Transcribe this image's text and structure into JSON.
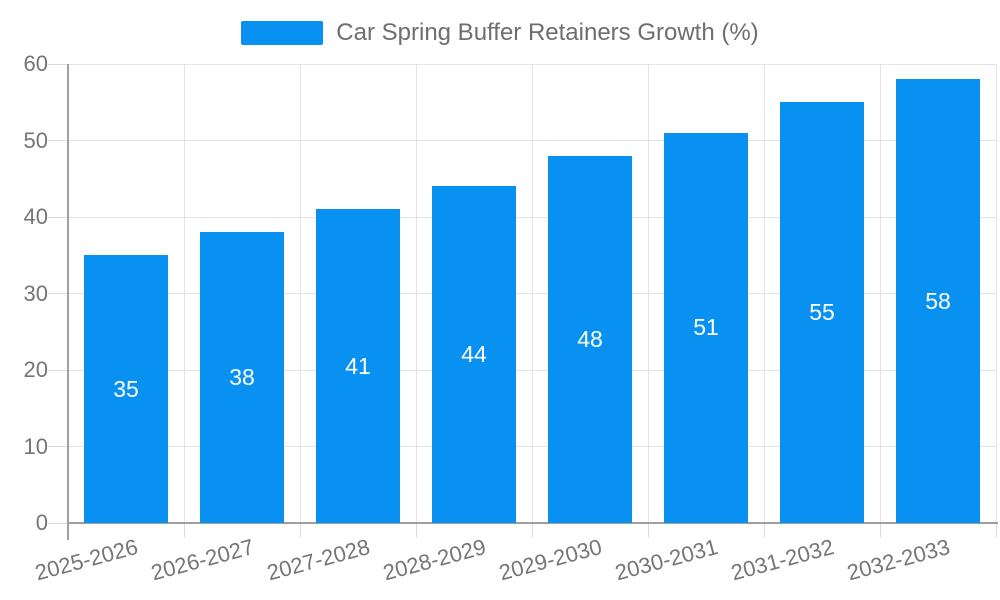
{
  "legend": {
    "label": "Car Spring Buffer Retainers Growth (%)"
  },
  "chart_data": {
    "type": "bar",
    "title": "Car Spring Buffer Retainers Growth (%)",
    "categories": [
      "2025-2026",
      "2026-2027",
      "2027-2028",
      "2028-2029",
      "2029-2030",
      "2030-2031",
      "2031-2032",
      "2032-2033"
    ],
    "series": [
      {
        "name": "Car Spring Buffer Retainers Growth (%)",
        "values": [
          35,
          38,
          41,
          44,
          48,
          51,
          55,
          58
        ]
      }
    ],
    "values": [
      35,
      38,
      41,
      44,
      48,
      51,
      55,
      58
    ],
    "value_labels": [
      "35",
      "38",
      "41",
      "44",
      "48",
      "51",
      "55",
      "58"
    ],
    "xlabel": "",
    "ylabel": "",
    "ylim": [
      0,
      60
    ],
    "yticks": [
      0,
      10,
      20,
      30,
      40,
      50,
      60
    ],
    "grid": true,
    "legend_position": "top-center",
    "colors": {
      "bar": "#0991f2",
      "value_label": "#ffffff",
      "axis_label": "#757575",
      "legend_text": "#6e6e6e",
      "gridline": "#e4e4e4",
      "tick": "#d9d9d9",
      "axis_line": "#a0a0a0"
    }
  }
}
